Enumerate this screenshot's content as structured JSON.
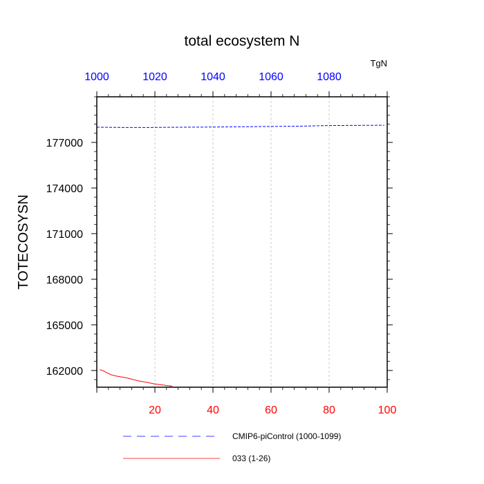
{
  "chart_data": {
    "type": "line",
    "title": "total ecosystem N",
    "units": "TgN",
    "ylabel": "TOTECOSYSN",
    "xlabel": "",
    "ylim": [
      160900,
      180000
    ],
    "yticks": [
      162000,
      165000,
      168000,
      171000,
      174000,
      177000
    ],
    "y_minor_step": 600,
    "x_bottom": {
      "lim": [
        0,
        100
      ],
      "ticks": [
        20,
        40,
        60,
        80,
        100
      ],
      "minor_step": 4,
      "color": "#ff0000"
    },
    "x_top": {
      "lim": [
        1000,
        1100
      ],
      "ticks": [
        1000,
        1020,
        1040,
        1060,
        1080
      ],
      "minor_step": 4,
      "color": "#0000ff"
    },
    "grid": "vertical dashed at major x ticks",
    "series": [
      {
        "name": "CMIP6-piControl (1000-1099)",
        "axis": "top",
        "color": "#0000ff",
        "dash": "dashed",
        "x": [
          1000,
          1010,
          1020,
          1030,
          1040,
          1050,
          1060,
          1070,
          1080,
          1090,
          1099
        ],
        "values": [
          178000,
          177980,
          177985,
          178000,
          178010,
          178030,
          178050,
          178070,
          178110,
          178120,
          178130
        ]
      },
      {
        "name": "033 (1-26)",
        "axis": "bottom",
        "color": "#ff0000",
        "dash": "solid",
        "x": [
          1,
          2,
          3,
          4,
          5,
          6,
          7,
          8,
          9,
          10,
          11,
          12,
          13,
          14,
          15,
          16,
          17,
          18,
          19,
          20,
          21,
          22,
          23,
          24,
          25,
          26
        ],
        "values": [
          162050,
          162000,
          161900,
          161800,
          161720,
          161660,
          161620,
          161590,
          161560,
          161520,
          161480,
          161430,
          161380,
          161330,
          161290,
          161260,
          161230,
          161190,
          161150,
          161110,
          161090,
          161060,
          161040,
          161010,
          160990,
          160970
        ]
      }
    ],
    "legend": "bottom"
  }
}
